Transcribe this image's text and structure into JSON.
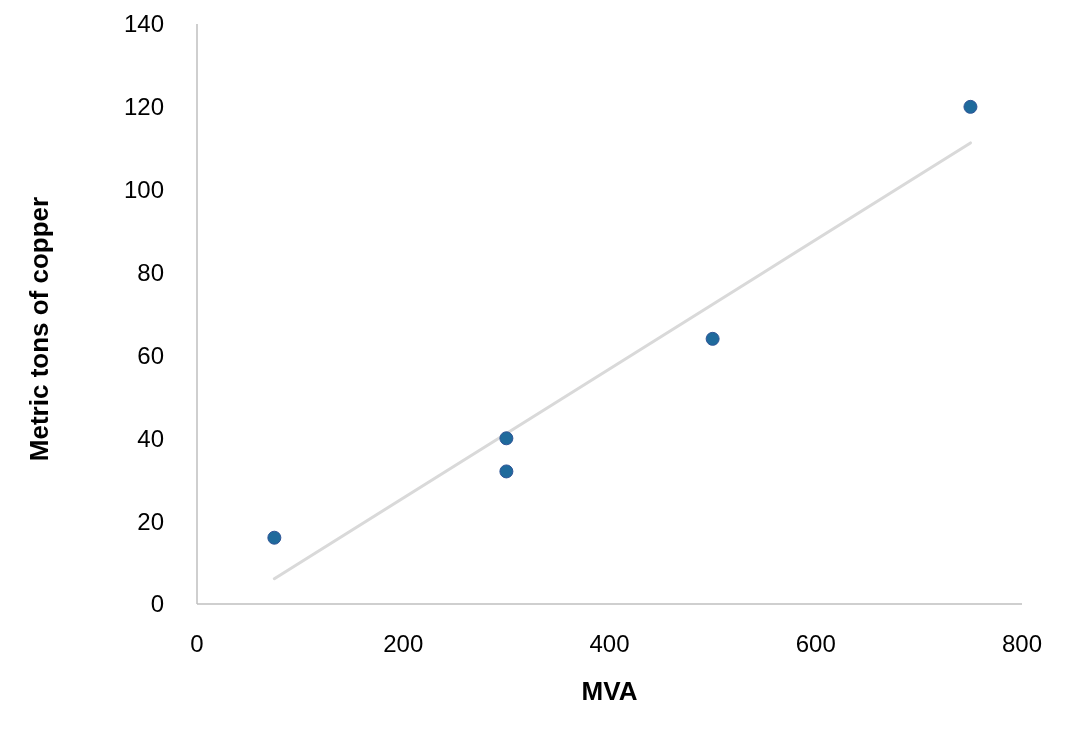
{
  "chart_data": {
    "type": "scatter",
    "xlabel": "MVA",
    "ylabel": "Metric tons of copper",
    "xlim": [
      0,
      800
    ],
    "ylim": [
      0,
      140
    ],
    "xticks": [
      0,
      200,
      400,
      600,
      800
    ],
    "yticks": [
      0,
      20,
      40,
      60,
      80,
      100,
      120,
      140
    ],
    "grid": false,
    "series": [
      {
        "color": "#1f6a9c",
        "marker": "circle",
        "x": [
          75,
          300,
          300,
          500,
          750
        ],
        "values": [
          16,
          40,
          32,
          64,
          120
        ]
      },
      {
        "type": "line",
        "color": "#d9d9d9",
        "x": [
          75,
          750
        ],
        "values": [
          6.1,
          111.3
        ],
        "line_style": "solid",
        "marker": "none"
      }
    ]
  }
}
